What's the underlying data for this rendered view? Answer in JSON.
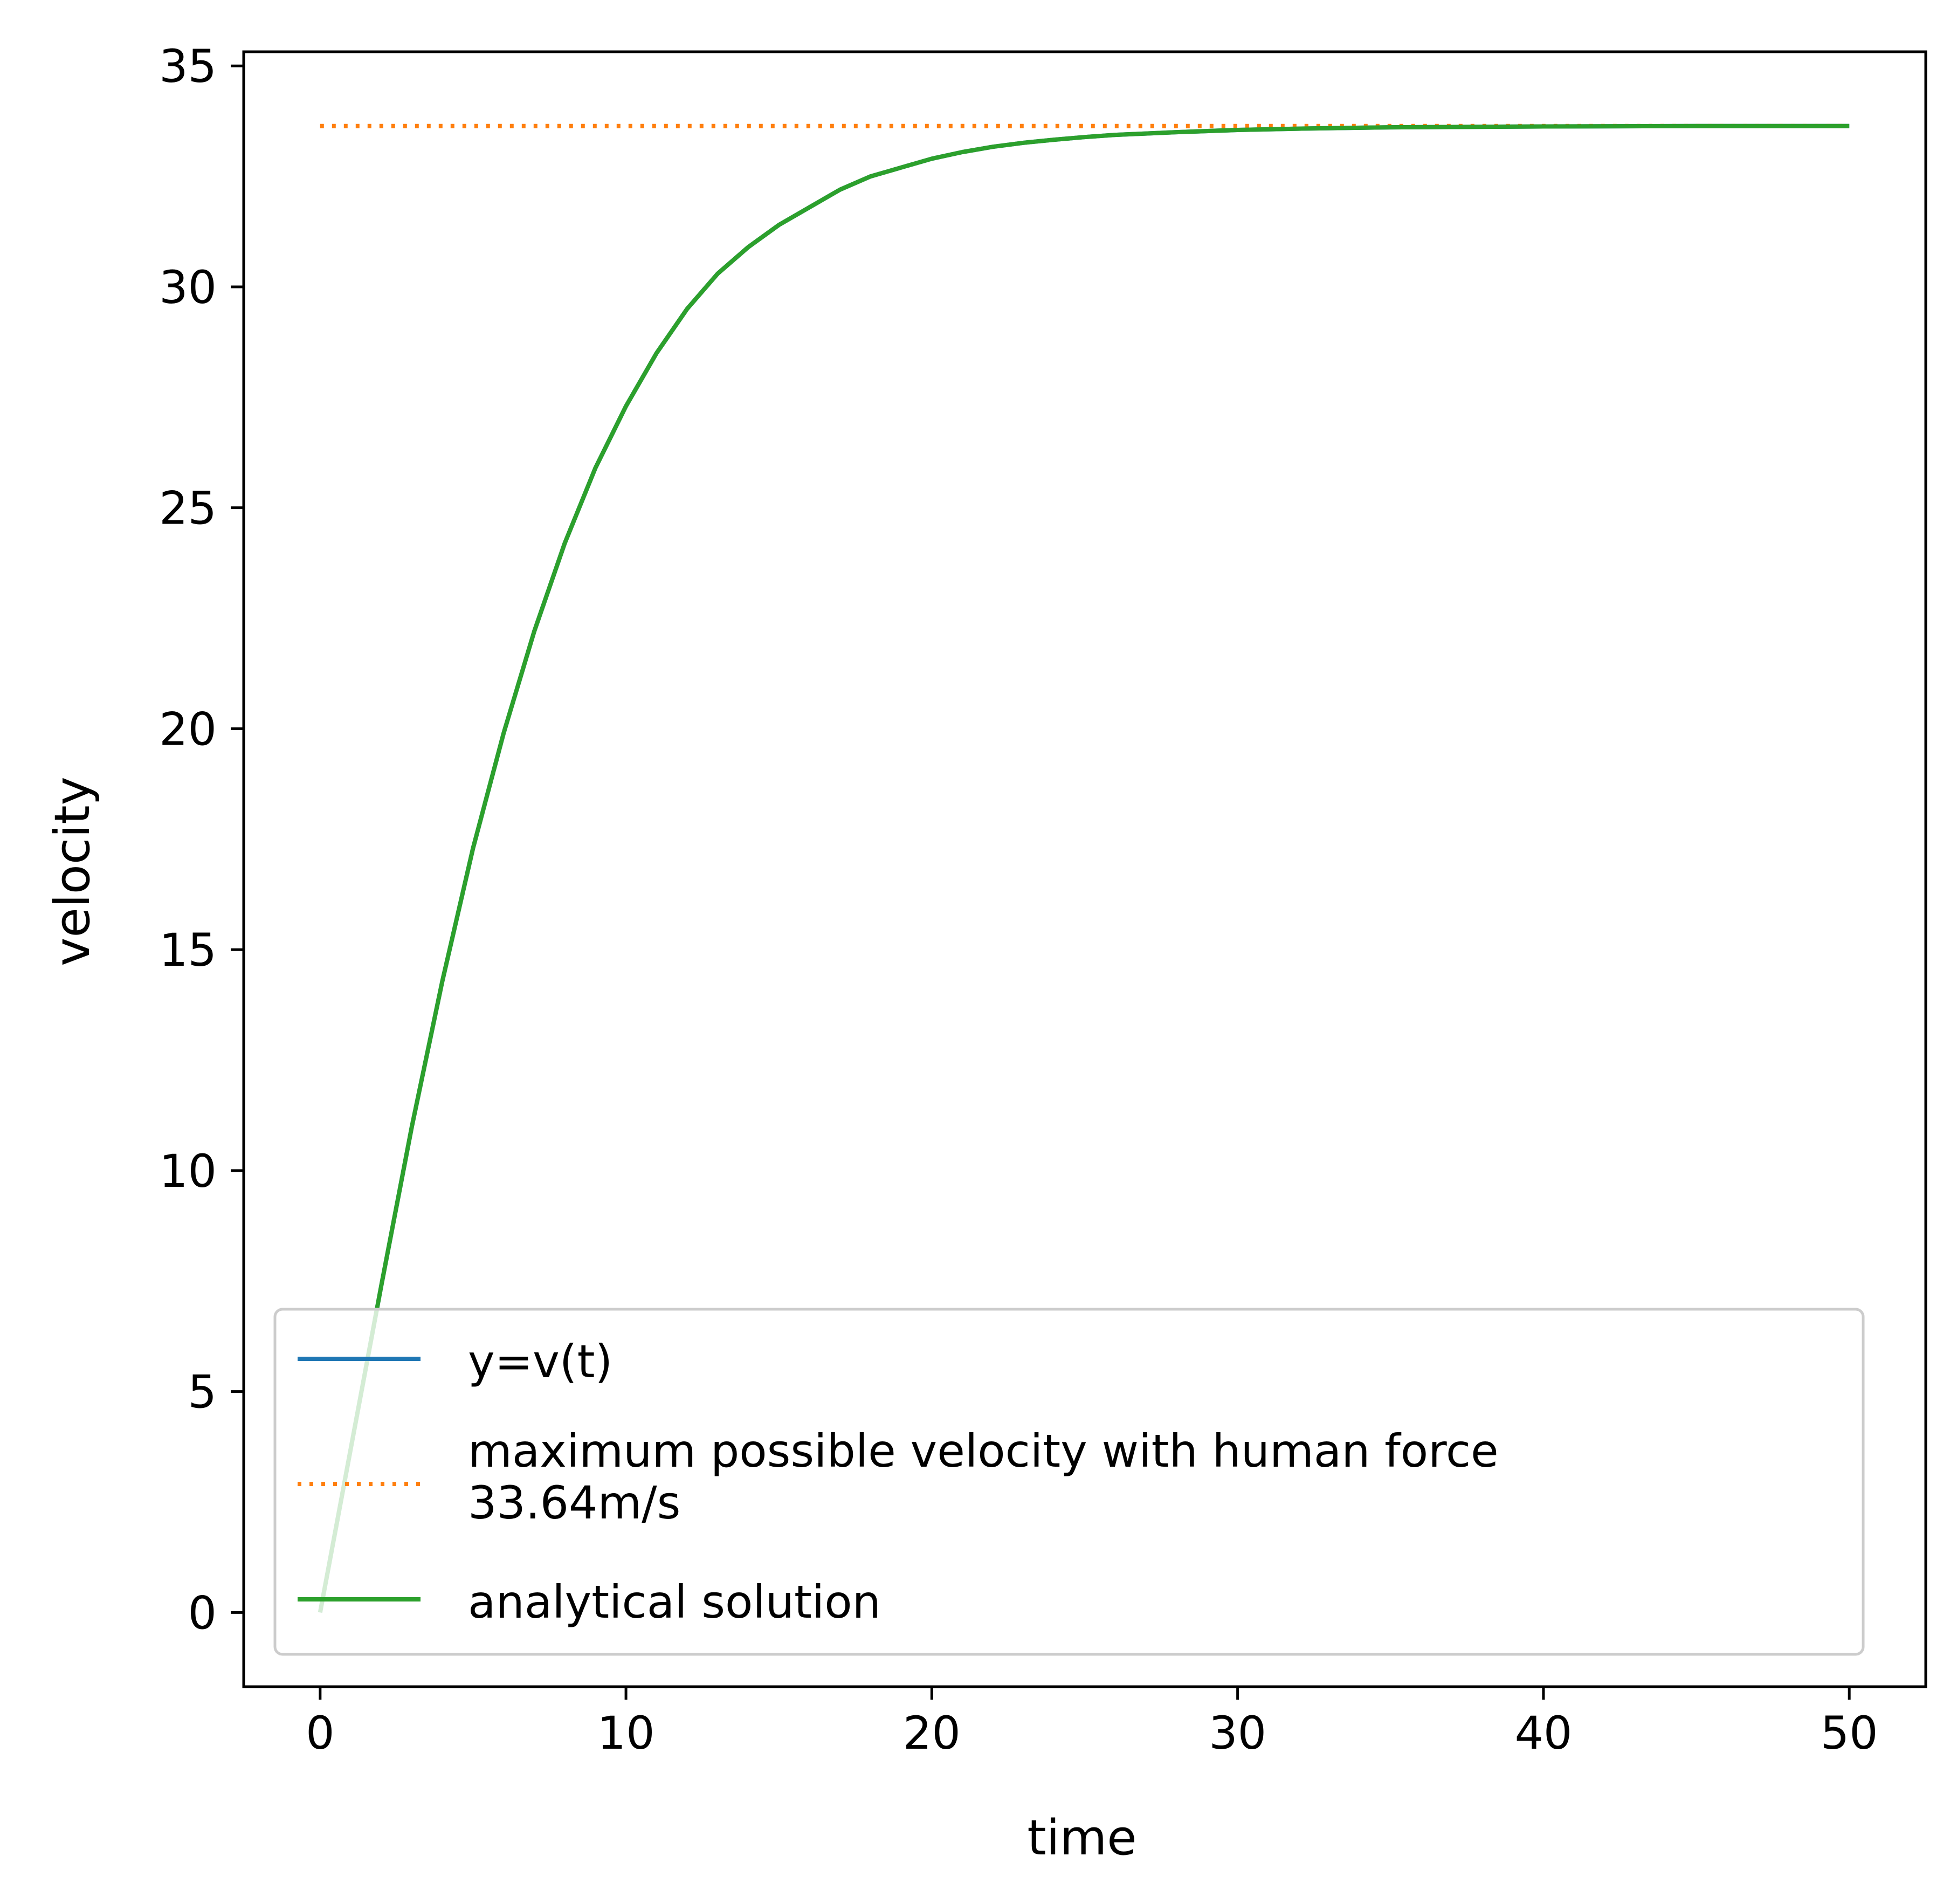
{
  "chart_data": {
    "type": "line",
    "title": "",
    "xlabel": "time",
    "ylabel": "velocity",
    "xlim": [
      -2.5,
      52.5
    ],
    "ylim": [
      -1.68,
      35.32
    ],
    "xticks": [
      0,
      10,
      20,
      30,
      40,
      50
    ],
    "yticks": [
      0,
      5,
      10,
      15,
      20,
      25,
      30,
      35
    ],
    "grid": false,
    "legend_position": "lower-right",
    "series": [
      {
        "name": "y=v(t)",
        "color": "#1f77b4",
        "style": "solid",
        "x": [
          0,
          1,
          2,
          3,
          4,
          5,
          6,
          7,
          8,
          9,
          10,
          11,
          12,
          13,
          14,
          15,
          16,
          17,
          18,
          19,
          20,
          21,
          22,
          23,
          24,
          25,
          26,
          28,
          30,
          32,
          35,
          40,
          45,
          50
        ],
        "y": [
          0,
          3.7,
          7.4,
          11.0,
          14.3,
          17.3,
          19.9,
          22.2,
          24.2,
          25.9,
          27.3,
          28.5,
          29.5,
          30.3,
          30.9,
          31.4,
          31.8,
          32.2,
          32.5,
          32.7,
          32.9,
          33.05,
          33.17,
          33.26,
          33.33,
          33.39,
          33.44,
          33.5,
          33.55,
          33.58,
          33.61,
          33.63,
          33.64,
          33.64
        ]
      },
      {
        "name": "maximum possible velocity with human force\n33.64m/s",
        "color": "#ff7f0e",
        "style": "dotted",
        "x": [
          0,
          50
        ],
        "y": [
          33.64,
          33.64
        ]
      },
      {
        "name": "analytical solution",
        "color": "#2ca02c",
        "style": "solid",
        "x": [
          0,
          1,
          2,
          3,
          4,
          5,
          6,
          7,
          8,
          9,
          10,
          11,
          12,
          13,
          14,
          15,
          16,
          17,
          18,
          19,
          20,
          21,
          22,
          23,
          24,
          25,
          26,
          28,
          30,
          32,
          35,
          40,
          45,
          50
        ],
        "y": [
          0,
          3.7,
          7.4,
          11.0,
          14.3,
          17.3,
          19.9,
          22.2,
          24.2,
          25.9,
          27.3,
          28.5,
          29.5,
          30.3,
          30.9,
          31.4,
          31.8,
          32.2,
          32.5,
          32.7,
          32.9,
          33.05,
          33.17,
          33.26,
          33.33,
          33.39,
          33.44,
          33.5,
          33.55,
          33.58,
          33.61,
          33.63,
          33.64,
          33.64
        ]
      }
    ]
  }
}
